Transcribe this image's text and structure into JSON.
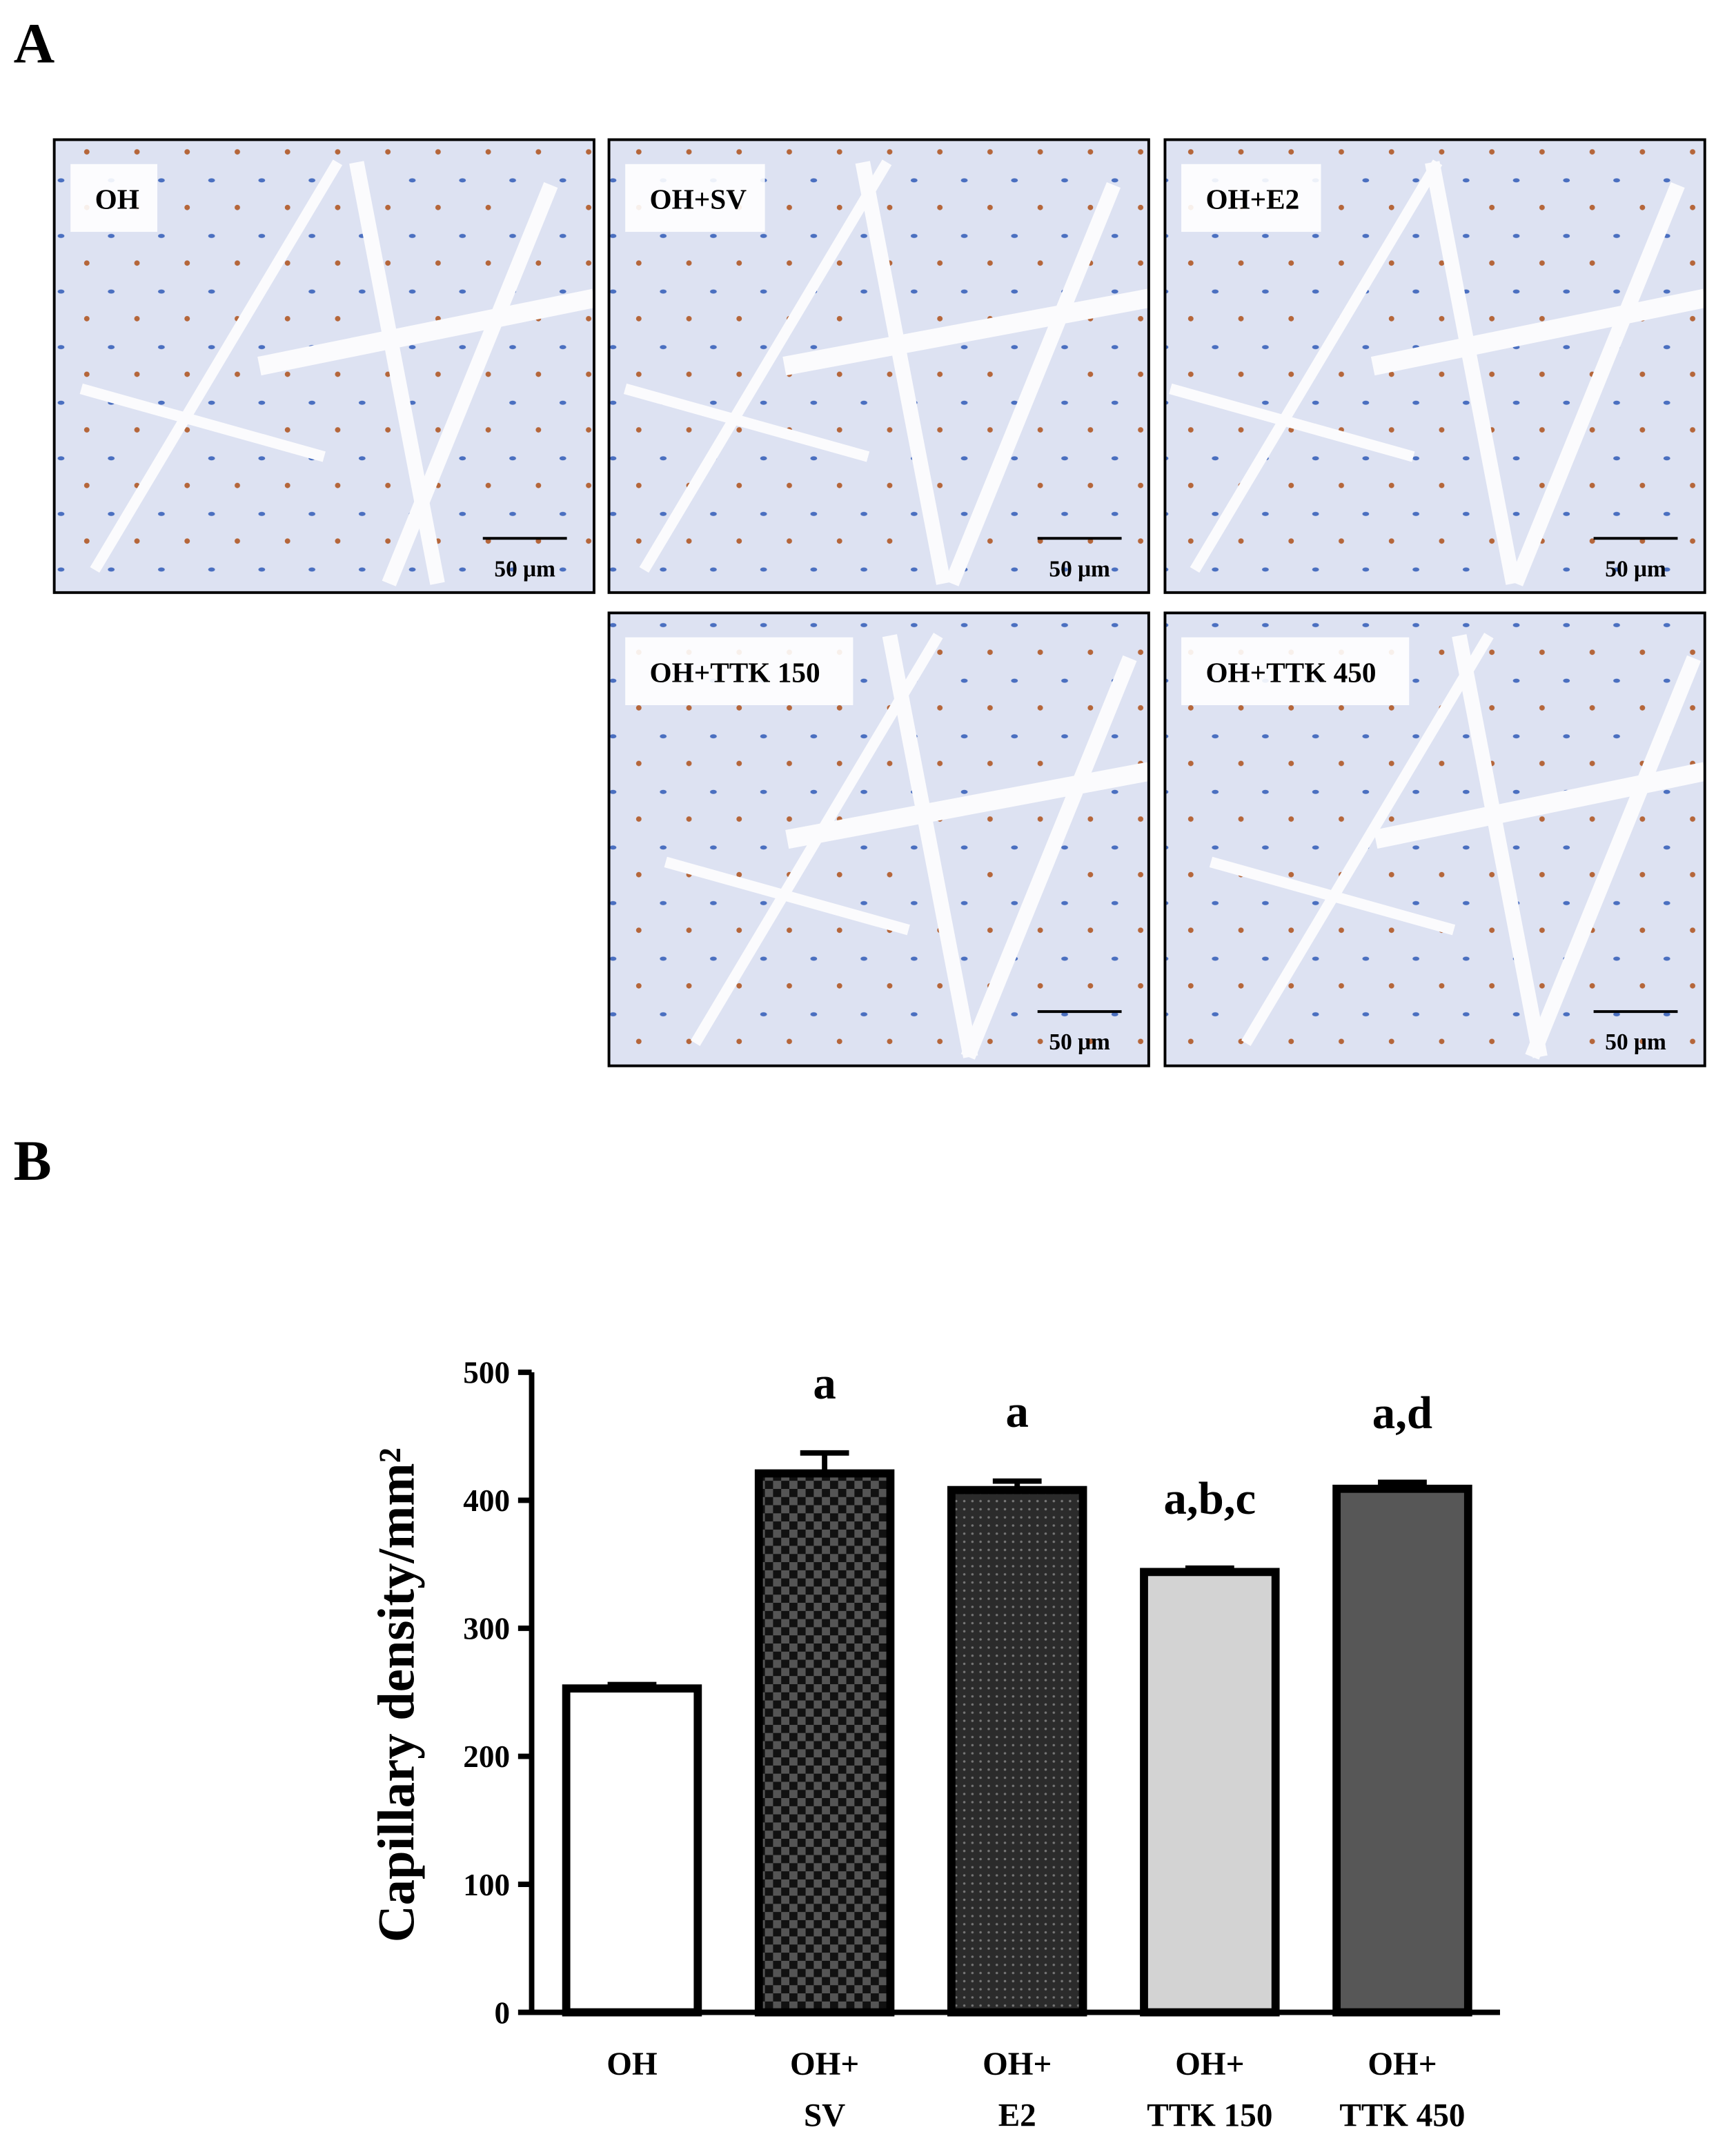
{
  "panel_a": {
    "label": "A",
    "images": [
      {
        "label": "OH",
        "scale_bar": "50 μm"
      },
      {
        "label": "OH+SV",
        "scale_bar": "50 μm"
      },
      {
        "label": "OH+E2",
        "scale_bar": "50 μm"
      },
      {
        "label": "OH+TTK 150",
        "scale_bar": "50 μm"
      },
      {
        "label": "OH+TTK 450",
        "scale_bar": "50 μm"
      }
    ]
  },
  "panel_b": {
    "label": "B"
  },
  "chart_data": {
    "type": "bar",
    "y_label": "Capillary density/mm²",
    "categories": [
      [
        "OH"
      ],
      [
        "OH+",
        "SV"
      ],
      [
        "OH+",
        "E2"
      ],
      [
        "OH+",
        "TTK 150"
      ],
      [
        "OH+",
        "TTK 450"
      ]
    ],
    "values": [
      253,
      421,
      408,
      344,
      409
    ],
    "errors": [
      3,
      16,
      7,
      3,
      5
    ],
    "annotations": [
      null,
      "a",
      "a",
      "a,b,c",
      "a,d"
    ],
    "colors": [
      "#ffffff",
      "#555555",
      "#2b2b2b",
      "#d3d3d3",
      "#575757"
    ],
    "patterns": [
      "solid",
      "checker",
      "dots",
      "solid",
      "solid"
    ],
    "ylim": [
      0,
      500
    ],
    "yticks": [
      0,
      100,
      200,
      300,
      400,
      500
    ]
  }
}
